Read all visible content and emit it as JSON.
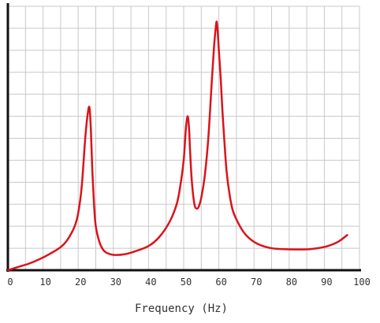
{
  "chart_data": {
    "type": "line",
    "title": "",
    "xlabel": "Frequency (Hz)",
    "ylabel": "",
    "xlim": [
      0,
      100
    ],
    "ylim": [
      0,
      12
    ],
    "x_ticks": [
      0,
      10,
      20,
      30,
      40,
      50,
      60,
      70,
      80,
      90,
      100
    ],
    "grid": true,
    "legend": "none",
    "line_color": "#d9141b",
    "series": [
      {
        "x": [
          0,
          3,
          6,
          9,
          12,
          15,
          17,
          19,
          20,
          21,
          22,
          22.7,
          23.2,
          23.6,
          24,
          24.5,
          25,
          26,
          27,
          28,
          30,
          33,
          36,
          40,
          43,
          46,
          48,
          49,
          50,
          50.6,
          51.1,
          51.5,
          51.8,
          52.2,
          52.7,
          53.2,
          53.8,
          54.3,
          55,
          56,
          57,
          58,
          58.6,
          59.1,
          59.4,
          59.7,
          60,
          60.5,
          61,
          61.6,
          62.2,
          63,
          64,
          66,
          68,
          71,
          75,
          80,
          85,
          88,
          91,
          94,
          96.5
        ],
        "y": [
          0,
          0.15,
          0.3,
          0.5,
          0.75,
          1.05,
          1.4,
          2.0,
          2.6,
          3.8,
          6.0,
          7.1,
          7.4,
          6.4,
          4.6,
          3.0,
          2.0,
          1.3,
          0.95,
          0.8,
          0.7,
          0.72,
          0.85,
          1.1,
          1.5,
          2.2,
          3.0,
          3.8,
          5.0,
          6.4,
          7.0,
          6.5,
          5.5,
          4.3,
          3.4,
          2.9,
          2.8,
          2.9,
          3.3,
          4.3,
          6.0,
          8.6,
          10.1,
          11.0,
          11.3,
          10.8,
          10.0,
          8.8,
          7.3,
          5.8,
          4.5,
          3.5,
          2.7,
          2.0,
          1.55,
          1.2,
          1.0,
          0.95,
          0.95,
          1.0,
          1.1,
          1.3,
          1.6
        ]
      }
    ]
  }
}
